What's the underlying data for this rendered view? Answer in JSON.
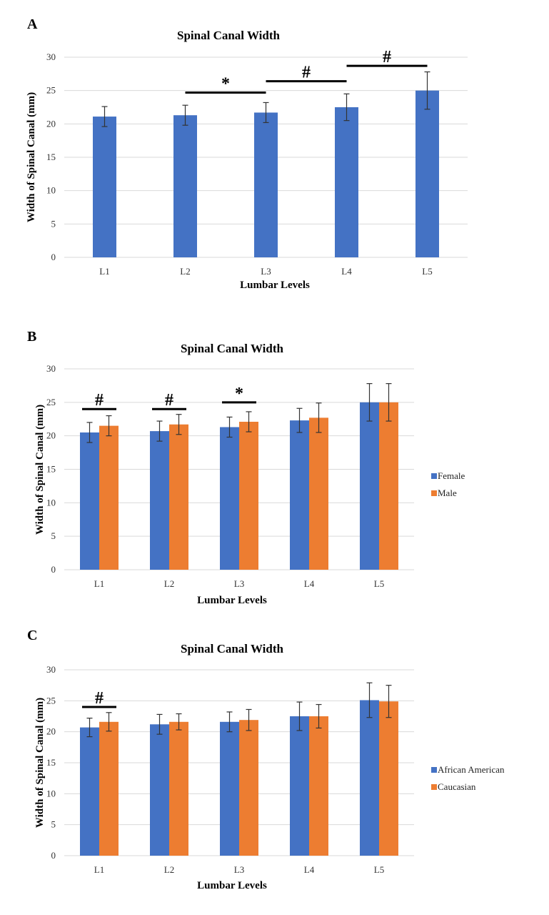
{
  "colors": {
    "female_or_aa": "#4472C4",
    "male_or_cauc": "#ED7D31",
    "grid": "#d9d9d9",
    "error": "#333333"
  },
  "chart_data": [
    {
      "panel_label": "A",
      "type": "bar",
      "title": "Spinal Canal Width",
      "xlabel": "Lumbar Levels",
      "ylabel": "Width of Spinal Canal (mm)",
      "ylim": [
        0,
        30
      ],
      "yticks": [
        0,
        5,
        10,
        15,
        20,
        25,
        30
      ],
      "grid": true,
      "categories": [
        "L1",
        "L2",
        "L3",
        "L4",
        "L5"
      ],
      "series": [
        {
          "values": [
            21.1,
            21.3,
            21.7,
            22.5,
            25.0
          ],
          "errors": [
            1.5,
            1.5,
            1.5,
            2.0,
            2.8
          ],
          "color": "#4472C4"
        }
      ],
      "significance": [
        {
          "from": "L2",
          "to": "L3",
          "symbol": "*",
          "at": 24.7
        },
        {
          "from": "L3",
          "to": "L4",
          "symbol": "#",
          "at": 26.4
        },
        {
          "from": "L4",
          "to": "L5",
          "symbol": "#",
          "at": 28.7
        }
      ]
    },
    {
      "panel_label": "B",
      "type": "bar",
      "title": "Spinal Canal Width",
      "xlabel": "Lumbar Levels",
      "ylabel": "Width of Spinal Canal (mm)",
      "ylim": [
        0,
        30
      ],
      "yticks": [
        0,
        5,
        10,
        15,
        20,
        25,
        30
      ],
      "grid": true,
      "legend_position": "right",
      "categories": [
        "L1",
        "L2",
        "L3",
        "L4",
        "L5"
      ],
      "series": [
        {
          "name": "Female",
          "values": [
            20.5,
            20.7,
            21.3,
            22.3,
            25.0
          ],
          "errors": [
            1.5,
            1.5,
            1.5,
            1.8,
            2.8
          ],
          "color": "#4472C4"
        },
        {
          "name": "Male",
          "values": [
            21.5,
            21.7,
            22.1,
            22.7,
            25.0
          ],
          "errors": [
            1.5,
            1.5,
            1.5,
            2.2,
            2.8
          ],
          "color": "#ED7D31"
        }
      ],
      "significance": [
        {
          "category": "L1",
          "symbol": "#",
          "at": 24.0
        },
        {
          "category": "L2",
          "symbol": "#",
          "at": 24.0
        },
        {
          "category": "L3",
          "symbol": "*",
          "at": 25.0
        }
      ]
    },
    {
      "panel_label": "C",
      "type": "bar",
      "title": "Spinal Canal Width",
      "xlabel": "Lumbar Levels",
      "ylabel": "Width of Spinal Canal (mm)",
      "ylim": [
        0,
        30
      ],
      "yticks": [
        0,
        5,
        10,
        15,
        20,
        25,
        30
      ],
      "grid": true,
      "legend_position": "right",
      "categories": [
        "L1",
        "L2",
        "L3",
        "L4",
        "L5"
      ],
      "series": [
        {
          "name": "African American",
          "values": [
            20.7,
            21.2,
            21.6,
            22.5,
            25.1
          ],
          "errors": [
            1.5,
            1.6,
            1.6,
            2.3,
            2.8
          ],
          "color": "#4472C4"
        },
        {
          "name": "Caucasian",
          "values": [
            21.6,
            21.6,
            21.9,
            22.5,
            24.9
          ],
          "errors": [
            1.5,
            1.3,
            1.7,
            1.9,
            2.6
          ],
          "color": "#ED7D31"
        }
      ],
      "significance": [
        {
          "category": "L1",
          "symbol": "#",
          "at": 24.0
        }
      ]
    }
  ]
}
